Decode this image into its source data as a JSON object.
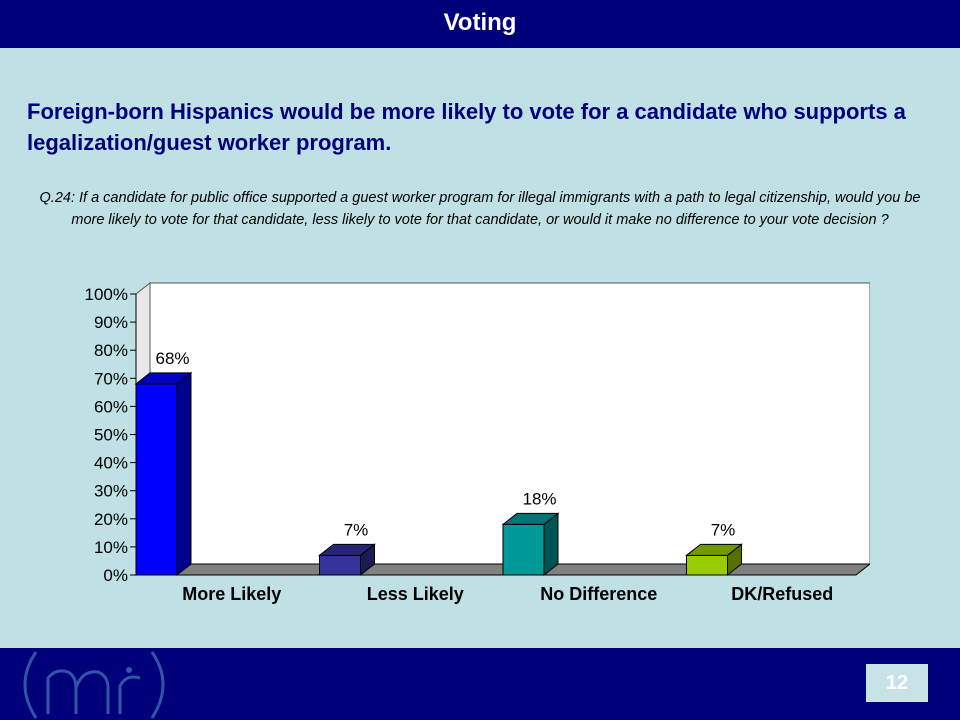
{
  "header": {
    "title": "Voting"
  },
  "headline": "Foreign-born Hispanics would be more likely to vote for a candidate who supports a legalization/guest worker program.",
  "question": "Q.24:  If a candidate for public office supported a guest worker program for illegal immigrants with a path to legal citizenship, would you be more likely to vote for that candidate, less likely to vote for that candidate, or would it make no difference to your vote decision ?",
  "footer": {
    "page_number": "12",
    "logo_icon": "m-logo-icon"
  },
  "chart_data": {
    "type": "bar",
    "categories": [
      "More Likely",
      "Less Likely",
      "No Difference",
      "DK/Refused"
    ],
    "values": [
      68,
      7,
      18,
      7
    ],
    "value_labels": [
      "68%",
      "7%",
      "18%",
      "7%"
    ],
    "colors": [
      "#0000ff",
      "#333399",
      "#009999",
      "#99cc00"
    ],
    "ylim": [
      0,
      100
    ],
    "yticks": [
      "0%",
      "10%",
      "20%",
      "30%",
      "40%",
      "50%",
      "60%",
      "70%",
      "80%",
      "90%",
      "100%"
    ],
    "xlabel": "",
    "ylabel": "",
    "grid": false,
    "legend": "none"
  }
}
